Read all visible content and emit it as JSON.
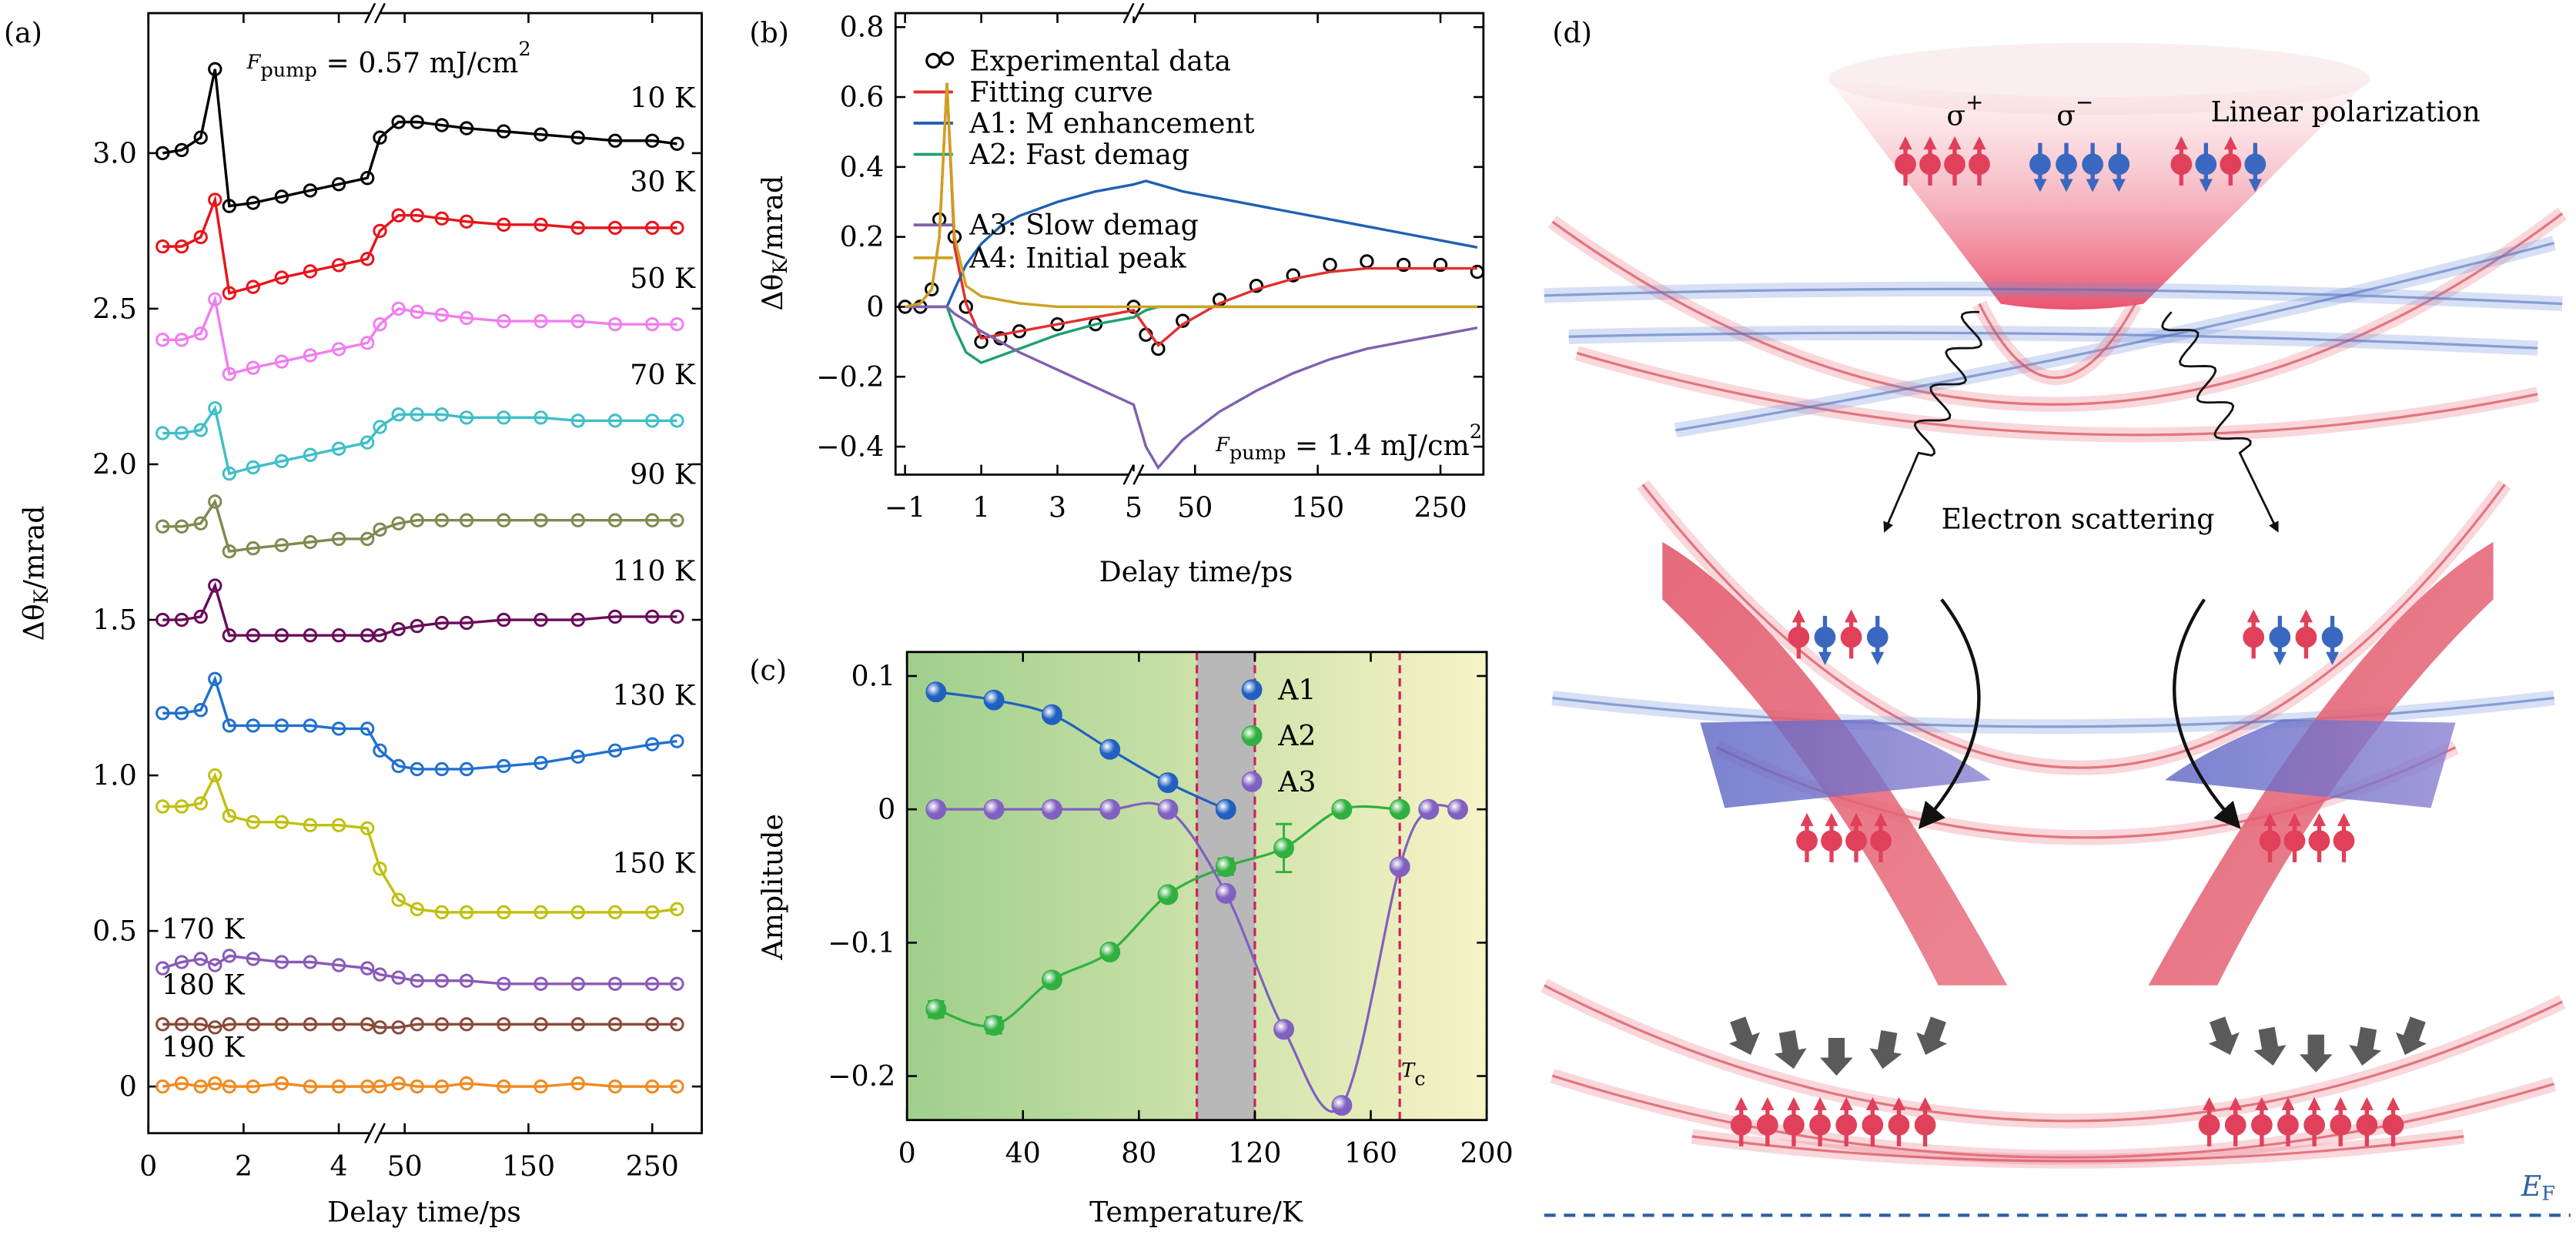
{
  "chart_data": [
    {
      "type": "line",
      "panel": "(a)",
      "annotation": [
        "F",
        "pump",
        " = 0.57 mJ/cm",
        "2"
      ],
      "xlabel": "Delay time/ps",
      "ylabel": [
        "Δθ",
        "K",
        "/mrad"
      ],
      "x_segments": [
        {
          "xlim": [
            0,
            4.76
          ],
          "xticks": [
            0,
            2,
            4
          ]
        },
        {
          "xlim": [
            26,
            290
          ],
          "xticks": [
            50,
            150,
            250
          ]
        }
      ],
      "ylim": [
        -0.15,
        3.45
      ],
      "yticks": [
        0,
        0.5,
        {
          "value": 1,
          "label": "1.0"
        },
        1.5,
        {
          "value": 2,
          "label": "2.0"
        },
        2.5,
        {
          "value": 3,
          "label": "3.0"
        }
      ],
      "legend": "inline",
      "x": [
        0.3,
        0.7,
        1.1,
        1.4,
        1.7,
        2.2,
        2.8,
        3.4,
        4.0,
        4.6,
        30,
        45,
        60,
        80,
        100,
        130,
        160,
        190,
        220,
        250,
        270
      ],
      "series": [
        {
          "name": "10 K",
          "color": "#000000",
          "marker": "open-circle",
          "line": true,
          "values": [
            3.0,
            3.01,
            3.05,
            3.27,
            2.83,
            2.84,
            2.86,
            2.88,
            2.9,
            2.92,
            3.05,
            3.1,
            3.1,
            3.09,
            3.08,
            3.07,
            3.06,
            3.05,
            3.04,
            3.04,
            3.03
          ]
        },
        {
          "name": "30 K",
          "color": "#e8141a",
          "marker": "open-circle",
          "line": true,
          "values": [
            2.7,
            2.7,
            2.73,
            2.85,
            2.55,
            2.57,
            2.6,
            2.62,
            2.64,
            2.66,
            2.75,
            2.8,
            2.8,
            2.79,
            2.78,
            2.77,
            2.77,
            2.76,
            2.76,
            2.76,
            2.76
          ]
        },
        {
          "name": "50 K",
          "color": "#f07ef0",
          "marker": "open-circle",
          "line": true,
          "values": [
            2.4,
            2.4,
            2.42,
            2.53,
            2.29,
            2.31,
            2.33,
            2.35,
            2.37,
            2.39,
            2.45,
            2.5,
            2.49,
            2.48,
            2.47,
            2.46,
            2.46,
            2.46,
            2.45,
            2.45,
            2.45
          ]
        },
        {
          "name": "70 K",
          "color": "#3fbfc8",
          "marker": "open-circle",
          "line": true,
          "values": [
            2.1,
            2.1,
            2.11,
            2.18,
            1.97,
            1.99,
            2.01,
            2.03,
            2.05,
            2.07,
            2.12,
            2.16,
            2.16,
            2.16,
            2.15,
            2.15,
            2.15,
            2.14,
            2.14,
            2.14,
            2.14
          ]
        },
        {
          "name": "90 K",
          "color": "#7f8a50",
          "marker": "open-circle",
          "line": true,
          "values": [
            1.8,
            1.8,
            1.81,
            1.88,
            1.72,
            1.73,
            1.74,
            1.75,
            1.76,
            1.76,
            1.79,
            1.81,
            1.82,
            1.82,
            1.82,
            1.82,
            1.82,
            1.82,
            1.82,
            1.82,
            1.82
          ]
        },
        {
          "name": "110 K",
          "color": "#6a0a5a",
          "marker": "open-circle",
          "line": true,
          "values": [
            1.5,
            1.5,
            1.51,
            1.61,
            1.45,
            1.45,
            1.45,
            1.45,
            1.45,
            1.45,
            1.45,
            1.47,
            1.48,
            1.49,
            1.49,
            1.5,
            1.5,
            1.5,
            1.51,
            1.51,
            1.51
          ]
        },
        {
          "name": "130 K",
          "color": "#2070d0",
          "marker": "open-circle",
          "line": true,
          "values": [
            1.2,
            1.2,
            1.21,
            1.31,
            1.16,
            1.16,
            1.16,
            1.16,
            1.15,
            1.15,
            1.08,
            1.03,
            1.02,
            1.02,
            1.02,
            1.03,
            1.04,
            1.06,
            1.08,
            1.1,
            1.11
          ]
        },
        {
          "name": "150 K",
          "color": "#c0c010",
          "marker": "open-circle",
          "line": true,
          "values": [
            0.9,
            0.9,
            0.91,
            1.0,
            0.87,
            0.85,
            0.85,
            0.84,
            0.84,
            0.83,
            0.7,
            0.6,
            0.57,
            0.56,
            0.56,
            0.56,
            0.56,
            0.56,
            0.56,
            0.56,
            0.57
          ]
        },
        {
          "name": "170 K",
          "color": "#8a5ab8",
          "marker": "open-circle",
          "line": true,
          "values": [
            0.38,
            0.4,
            0.41,
            0.39,
            0.42,
            0.41,
            0.4,
            0.4,
            0.39,
            0.38,
            0.36,
            0.35,
            0.34,
            0.34,
            0.34,
            0.33,
            0.33,
            0.33,
            0.33,
            0.33,
            0.33
          ]
        },
        {
          "name": "180 K",
          "color": "#8a4a3a",
          "marker": "open-circle",
          "line": true,
          "values": [
            0.2,
            0.2,
            0.2,
            0.19,
            0.2,
            0.2,
            0.2,
            0.2,
            0.2,
            0.2,
            0.19,
            0.19,
            0.2,
            0.2,
            0.2,
            0.2,
            0.2,
            0.2,
            0.2,
            0.2,
            0.2
          ]
        },
        {
          "name": "190 K",
          "color": "#f08a20",
          "marker": "open-circle",
          "line": true,
          "values": [
            0,
            0.01,
            0,
            0.01,
            0,
            0,
            0.01,
            0,
            0,
            0,
            0,
            0.01,
            0,
            0,
            0.01,
            0,
            0,
            0.01,
            0,
            0,
            0
          ]
        }
      ]
    },
    {
      "type": "line",
      "panel": "(b)",
      "annotation": [
        "F",
        "pump",
        " = 1.4 mJ/cm",
        "2"
      ],
      "xlabel": "Delay time/ps",
      "ylabel": [
        "Δθ",
        "K",
        "/mrad"
      ],
      "x_segments": [
        {
          "xlim": [
            -1.25,
            5
          ],
          "xticks": [
            {
              "value": -1,
              "label": "−1"
            },
            1,
            3,
            5
          ]
        },
        {
          "xlim": [
            0,
            285
          ],
          "xticks": [
            50,
            150,
            250
          ]
        }
      ],
      "ylim": [
        -0.48,
        0.84
      ],
      "yticks": [
        {
          "value": -0.4,
          "label": "−0.4"
        },
        {
          "value": -0.2,
          "label": "−0.2"
        },
        0,
        0.2,
        0.4,
        0.6,
        0.8
      ],
      "legend": "upper left",
      "x": [
        -1,
        -0.6,
        -0.3,
        -0.1,
        0.1,
        0.3,
        0.6,
        1,
        1.5,
        2,
        3,
        4,
        5,
        10,
        20,
        40,
        70,
        100,
        130,
        160,
        190,
        220,
        250,
        280
      ],
      "series": [
        {
          "name": "Experimental data",
          "color": "#000000",
          "marker": "open-circle",
          "line": false,
          "values": [
            0,
            0,
            0.05,
            0.25,
            0.71,
            0.2,
            0,
            -0.1,
            -0.09,
            -0.07,
            -0.05,
            -0.05,
            0,
            -0.08,
            -0.12,
            -0.04,
            0.02,
            0.06,
            0.09,
            0.12,
            0.13,
            0.12,
            0.12,
            0.1
          ]
        },
        {
          "name": "Fitting curve",
          "color": "#e03030",
          "marker": "none",
          "line": true,
          "values": [
            0,
            0.01,
            0.05,
            0.2,
            0.64,
            0.17,
            0.01,
            -0.09,
            -0.08,
            -0.07,
            -0.05,
            -0.03,
            -0.01,
            -0.06,
            -0.11,
            -0.05,
            0.01,
            0.05,
            0.08,
            0.1,
            0.11,
            0.11,
            0.11,
            0.11
          ]
        },
        {
          "name": "A1: M enhancement",
          "color": "#2060b0",
          "marker": "none",
          "line": true,
          "values": [
            0,
            0,
            0,
            0,
            0,
            0.05,
            0.12,
            0.18,
            0.23,
            0.26,
            0.3,
            0.33,
            0.35,
            0.36,
            0.35,
            0.33,
            0.31,
            0.29,
            0.27,
            0.25,
            0.23,
            0.21,
            0.19,
            0.17
          ]
        },
        {
          "name": "A2: Fast demag",
          "color": "#20a070",
          "marker": "none",
          "line": true,
          "values": [
            0,
            0,
            0,
            0,
            0,
            -0.06,
            -0.13,
            -0.16,
            -0.14,
            -0.12,
            -0.08,
            -0.05,
            -0.03,
            -0.01,
            0,
            0,
            0,
            0,
            0,
            0,
            0,
            0,
            0,
            0
          ]
        },
        {
          "name": "A3: Slow demag",
          "color": "#8060b0",
          "marker": "none",
          "line": true,
          "values": [
            0,
            0,
            0,
            0,
            0,
            -0.02,
            -0.04,
            -0.07,
            -0.1,
            -0.13,
            -0.18,
            -0.23,
            -0.28,
            -0.4,
            -0.46,
            -0.38,
            -0.3,
            -0.24,
            -0.19,
            -0.15,
            -0.12,
            -0.1,
            -0.08,
            -0.06
          ]
        },
        {
          "name": "A4: Initial peak",
          "color": "#d0a020",
          "marker": "none",
          "line": true,
          "values": [
            0,
            0.01,
            0.05,
            0.2,
            0.64,
            0.2,
            0.06,
            0.03,
            0.02,
            0.01,
            0,
            0,
            0,
            0,
            0,
            0,
            0,
            0,
            0,
            0,
            0,
            0,
            0,
            0
          ]
        }
      ]
    },
    {
      "type": "scatter",
      "panel": "(c)",
      "annotation": [
        "T",
        "c"
      ],
      "xlabel": "Temperature/K",
      "ylabel": [
        "Amplitude"
      ],
      "xlim": [
        0,
        200
      ],
      "xticks": [
        0,
        40,
        80,
        120,
        160,
        200
      ],
      "ylim": [
        -0.233,
        0.118
      ],
      "yticks": [
        {
          "value": -0.2,
          "label": "−0.2"
        },
        {
          "value": -0.1,
          "label": "−0.1"
        },
        0,
        0.1
      ],
      "legend": "upper right",
      "background_gradient": [
        "#9fcf8c",
        "#f7f3c6"
      ],
      "band": [
        100,
        120
      ],
      "band_color": "#b8b8b8",
      "vlines": [
        100,
        120,
        170
      ],
      "vline_color": "#d0205a",
      "x": [
        10,
        30,
        50,
        70,
        90,
        110,
        130,
        150,
        170,
        180,
        190
      ],
      "series": [
        {
          "name": "A1",
          "color": "#2060c0",
          "values": [
            0.088,
            0.082,
            0.071,
            0.045,
            0.02,
            0,
            null,
            null,
            null,
            null,
            null
          ]
        },
        {
          "name": "A2",
          "color": "#30b040",
          "values": [
            -0.15,
            -0.162,
            -0.128,
            -0.107,
            -0.064,
            -0.043,
            -0.029,
            0,
            0,
            null,
            null
          ],
          "errors": [
            0.006,
            0.006,
            0.004,
            0.004,
            0.004,
            0.006,
            0.018,
            0.003,
            0.003,
            null,
            null
          ]
        },
        {
          "name": "A3",
          "color": "#8060c0",
          "values": [
            0,
            0,
            0,
            0,
            0,
            -0.063,
            -0.165,
            -0.222,
            -0.043,
            0,
            0
          ]
        }
      ]
    }
  ],
  "diagram": {
    "panel": "(d)",
    "sigma_plus": [
      "σ",
      "+"
    ],
    "sigma_minus": [
      "σ",
      "−"
    ],
    "linear": "Linear polarization",
    "scattering": "Electron scattering",
    "fermi": [
      "E",
      "F"
    ]
  }
}
